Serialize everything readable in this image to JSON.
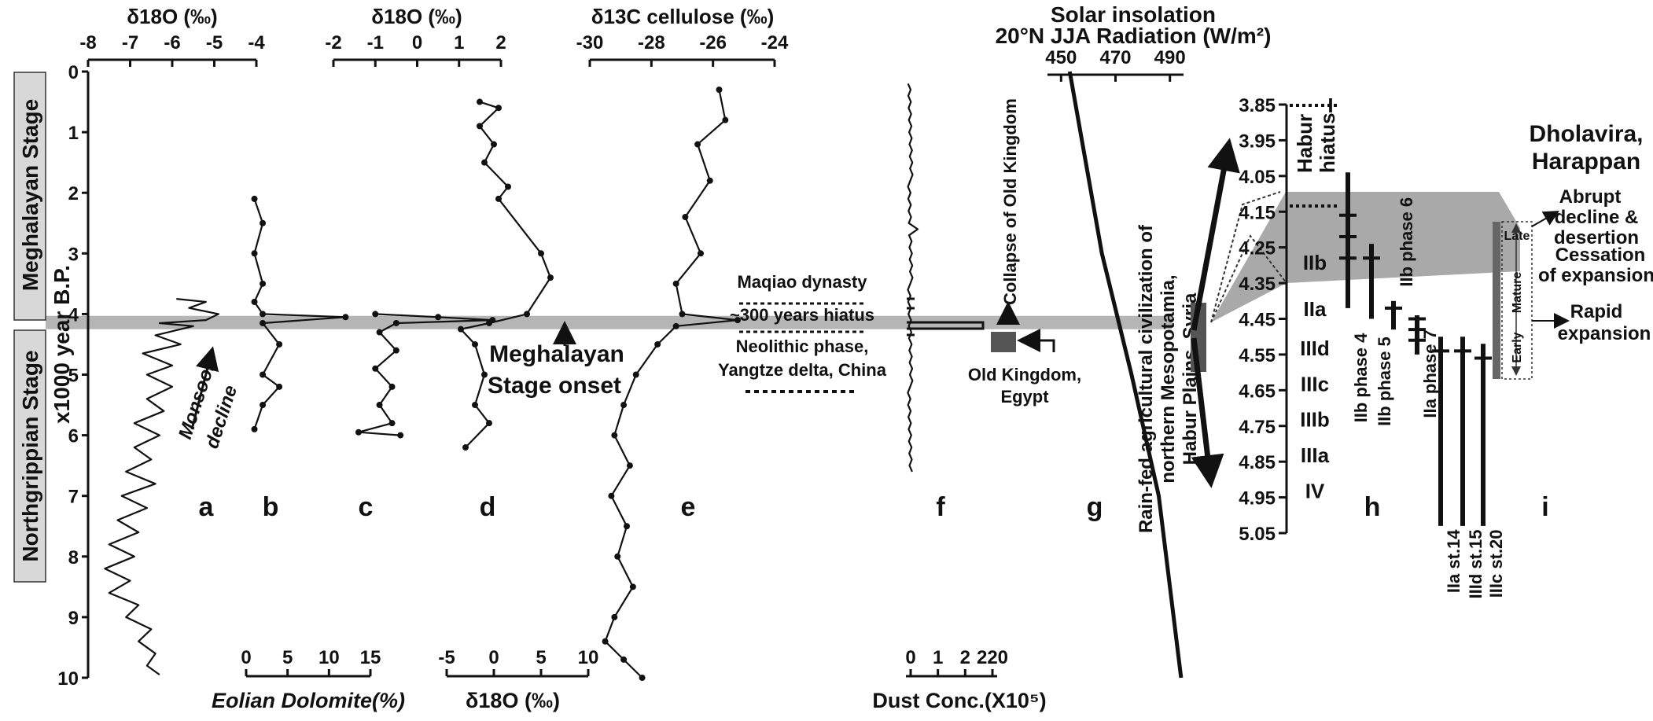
{
  "chart_data": {
    "type": "line",
    "y_axis": {
      "label": "x1000  year B.P.",
      "ticks": [
        "0",
        "1",
        "2",
        "3",
        "4",
        "5",
        "6",
        "7",
        "8",
        "9",
        "10"
      ],
      "range": [
        0,
        10
      ]
    },
    "stages": [
      {
        "label": "Meghalayan Stage",
        "range": [
          0,
          4.2
        ]
      },
      {
        "label": "Northgrippian Stage",
        "range": [
          4.2,
          10
        ]
      }
    ],
    "event_band": {
      "from": 4.03,
      "to": 4.25
    },
    "panels": [
      {
        "id": "a",
        "label": "a",
        "axis_title": "δ18O (‰)",
        "ticks": [
          "-8",
          "-7",
          "-6",
          "-5",
          "-4"
        ],
        "range": [
          -8,
          -4
        ],
        "annotation": [
          "Monsoon",
          "decline"
        ]
      },
      {
        "id": "b",
        "label": "b",
        "axis_title": "Eolian Dolomite(%)",
        "ticks": [
          "0",
          "5",
          "10",
          "15"
        ],
        "range": [
          0,
          15
        ],
        "axis_position": "bottom"
      },
      {
        "id": "c",
        "label": "c",
        "axis_title": "δ18O (‰)",
        "ticks": [
          "-2",
          "-1",
          "0",
          "1",
          "2"
        ],
        "range": [
          -2,
          2
        ]
      },
      {
        "id": "d",
        "label": "d",
        "axis_title": "δ18O (‰)",
        "ticks": [
          "-5",
          "0",
          "5",
          "10"
        ],
        "range": [
          -5,
          10
        ],
        "axis_position": "bottom"
      },
      {
        "id": "e",
        "label": "e",
        "axis_title": "δ13C cellulose (‰)",
        "ticks": [
          "-30",
          "-28",
          "-26",
          "-24"
        ],
        "range": [
          -30,
          -24
        ]
      },
      {
        "id": "f",
        "label": "f",
        "axis_title": "Dust Conc.(X10⁵)",
        "ticks": [
          "0",
          "1",
          "2",
          "220"
        ],
        "axis_position": "bottom"
      },
      {
        "id": "g",
        "label": "g",
        "axis_title": [
          "Solar insolation",
          "20°N JJA Radiation (W/m²)"
        ],
        "ticks": [
          "450",
          "470",
          "490"
        ],
        "range": [
          440,
          495
        ]
      },
      {
        "id": "h",
        "label": "h",
        "axis_ticks": [
          "3.85",
          "3.95",
          "4.05",
          "4.15",
          "4.25",
          "4.35",
          "4.45",
          "4.55",
          "4.65",
          "4.75",
          "4.85",
          "4.95",
          "5.05"
        ],
        "range": [
          3.85,
          5.05
        ]
      },
      {
        "id": "i",
        "label": "i"
      }
    ],
    "series": [
      {
        "panel": "a",
        "points": [
          [
            -5.9,
            3.75
          ],
          [
            -5.2,
            3.8
          ],
          [
            -5.6,
            3.9
          ],
          [
            -4.9,
            4.0
          ],
          [
            -5.2,
            4.1
          ],
          [
            -6.3,
            4.15
          ],
          [
            -5.5,
            4.2
          ],
          [
            -6.4,
            4.35
          ],
          [
            -5.8,
            4.5
          ],
          [
            -6.7,
            4.65
          ],
          [
            -6.0,
            4.85
          ],
          [
            -6.6,
            5.0
          ],
          [
            -6.0,
            5.2
          ],
          [
            -6.6,
            5.4
          ],
          [
            -6.2,
            5.6
          ],
          [
            -6.9,
            5.8
          ],
          [
            -6.3,
            6.0
          ],
          [
            -6.9,
            6.2
          ],
          [
            -6.5,
            6.4
          ],
          [
            -7.1,
            6.6
          ],
          [
            -6.4,
            6.8
          ],
          [
            -7.2,
            7.0
          ],
          [
            -6.6,
            7.2
          ],
          [
            -7.3,
            7.4
          ],
          [
            -6.8,
            7.6
          ],
          [
            -7.5,
            7.8
          ],
          [
            -6.9,
            8.0
          ],
          [
            -7.6,
            8.2
          ],
          [
            -7.0,
            8.4
          ],
          [
            -7.5,
            8.6
          ],
          [
            -6.8,
            8.8
          ],
          [
            -7.1,
            9.0
          ],
          [
            -6.5,
            9.2
          ],
          [
            -6.8,
            9.4
          ],
          [
            -6.4,
            9.6
          ],
          [
            -6.6,
            9.8
          ],
          [
            -6.3,
            9.95
          ]
        ]
      },
      {
        "panel": "b",
        "points": [
          [
            1,
            2.1
          ],
          [
            2,
            2.5
          ],
          [
            1,
            3.0
          ],
          [
            2,
            3.5
          ],
          [
            1,
            3.8
          ],
          [
            2,
            4.0
          ],
          [
            12,
            4.05
          ],
          [
            2,
            4.15
          ],
          [
            4,
            4.5
          ],
          [
            2,
            5.0
          ],
          [
            4,
            5.2
          ],
          [
            2,
            5.5
          ],
          [
            1,
            5.9
          ]
        ]
      },
      {
        "panel": "c",
        "points": [
          [
            -1.0,
            4.0
          ],
          [
            0.5,
            4.05
          ],
          [
            1.8,
            4.1
          ],
          [
            -0.5,
            4.15
          ],
          [
            -0.9,
            4.3
          ],
          [
            -0.5,
            4.6
          ],
          [
            -1.0,
            4.9
          ],
          [
            -0.6,
            5.2
          ],
          [
            -0.9,
            5.5
          ],
          [
            -0.6,
            5.8
          ],
          [
            -1.4,
            5.95
          ],
          [
            -0.4,
            6.0
          ]
        ]
      },
      {
        "panel": "d",
        "points": [
          [
            -1.5,
            0.5
          ],
          [
            0.5,
            0.6
          ],
          [
            -1.5,
            0.9
          ],
          [
            0.0,
            1.2
          ],
          [
            -1.0,
            1.5
          ],
          [
            1.5,
            1.9
          ],
          [
            0.5,
            2.1
          ],
          [
            5.0,
            3.0
          ],
          [
            6.0,
            3.4
          ],
          [
            3.5,
            4.0
          ],
          [
            -0.5,
            4.15
          ],
          [
            -3.5,
            4.25
          ],
          [
            -2.0,
            4.5
          ],
          [
            -1.0,
            5.0
          ],
          [
            -2.0,
            5.5
          ],
          [
            -0.5,
            5.8
          ],
          [
            -3.0,
            6.2
          ]
        ]
      },
      {
        "panel": "e",
        "points": [
          [
            -25.8,
            0.3
          ],
          [
            -25.6,
            0.8
          ],
          [
            -26.5,
            1.2
          ],
          [
            -26.1,
            1.8
          ],
          [
            -26.9,
            2.4
          ],
          [
            -26.4,
            3.0
          ],
          [
            -27.2,
            3.5
          ],
          [
            -27.0,
            4.0
          ],
          [
            -25.2,
            4.1
          ],
          [
            -27.2,
            4.2
          ],
          [
            -27.8,
            4.5
          ],
          [
            -28.5,
            5.0
          ],
          [
            -28.9,
            5.5
          ],
          [
            -29.2,
            6.0
          ],
          [
            -28.7,
            6.5
          ],
          [
            -29.3,
            7.0
          ],
          [
            -28.8,
            7.5
          ],
          [
            -29.1,
            8.0
          ],
          [
            -28.6,
            8.5
          ],
          [
            -29.2,
            9.0
          ],
          [
            -29.5,
            9.4
          ],
          [
            -28.9,
            9.7
          ],
          [
            -28.3,
            10.0
          ]
        ]
      },
      {
        "panel": "g",
        "points": [
          [
            449,
            0.0
          ],
          [
            462,
            3.0
          ],
          [
            474,
            5.0
          ],
          [
            485,
            7.0
          ],
          [
            494,
            10.0
          ]
        ]
      }
    ],
    "annotations": [
      "Meghalayan",
      "Stage onset",
      "Maqiao dynasty",
      "~300 years hiatus",
      "Neolithic phase,",
      "Yangtze delta, China",
      "Collapse of Old Kingdom",
      "Old Kingdom,",
      "Egypt",
      "Rain-fed agricultural civilization of",
      "northern Mesopotamia,",
      "Habur Plains, Syria"
    ],
    "habur": {
      "hiatus_label": [
        "Habur",
        "hiatus"
      ],
      "periods": [
        "I",
        "IIb",
        "IIa",
        "IIId",
        "IIIc",
        "IIIb",
        "IIIa",
        "IV"
      ],
      "phases": [
        "IIb phase 4",
        "IIb phase 5",
        "IIb phase 6",
        "IIa phase 7",
        "IIa st.14",
        "IIId st.15",
        "IIIc st.20"
      ]
    },
    "dholavira": {
      "title": [
        "Dholavira,",
        "Harappan"
      ],
      "phases": [
        "Late",
        "Mature",
        "Early"
      ],
      "notes": [
        "Abrupt",
        "decline &",
        "desertion",
        "Cessation",
        "of expansion",
        "Rapid",
        "expansion"
      ]
    },
    "grid": false
  }
}
